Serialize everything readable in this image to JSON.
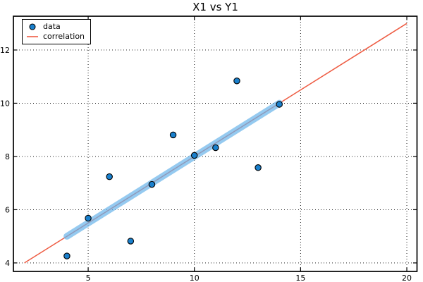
{
  "title": "X1 vs Y1",
  "legend": {
    "items": [
      {
        "label": "data",
        "sample": "marker"
      },
      {
        "label": "correlation",
        "sample": "line"
      }
    ]
  },
  "colors": {
    "marker_fill": "#1a80cd",
    "marker_edge": "#000000",
    "correlation_line": "#ee5c43",
    "highlight_band": "#69b4eb",
    "grid": "#000000",
    "spine": "#000000",
    "text": "#000000",
    "background": "#ffffff"
  },
  "chart_data": {
    "type": "scatter",
    "title": "X1 vs Y1",
    "xlabel": "",
    "ylabel": "",
    "xlim": [
      1.48,
      20.48
    ],
    "ylim": [
      3.68,
      13.27
    ],
    "xticks": [
      5,
      10,
      15,
      20
    ],
    "yticks": [
      4,
      6,
      8,
      10,
      12
    ],
    "grid": true,
    "grid_style": "dotted",
    "legend_position": "upper left",
    "series": [
      {
        "name": "data",
        "kind": "scatter",
        "x": [
          10,
          8,
          13,
          9,
          11,
          14,
          6,
          4,
          12,
          7,
          5
        ],
        "y": [
          8.04,
          6.95,
          7.58,
          8.81,
          8.33,
          9.96,
          7.24,
          4.26,
          10.84,
          4.82,
          5.68
        ],
        "marker": "circle",
        "marker_size": 4.2,
        "marker_color": "#1a80cd",
        "marker_edge_color": "#000000"
      },
      {
        "name": "correlation",
        "kind": "line",
        "x": [
          2,
          20
        ],
        "y": [
          4,
          13
        ],
        "color": "#ee5c43",
        "width": 1.5,
        "opacity": 1
      },
      {
        "name": "fit-highlight-band",
        "kind": "line",
        "x": [
          4,
          14
        ],
        "y": [
          5,
          10
        ],
        "color": "#69b4eb",
        "width": 9.5,
        "opacity": 0.7,
        "cap": "round"
      }
    ]
  }
}
